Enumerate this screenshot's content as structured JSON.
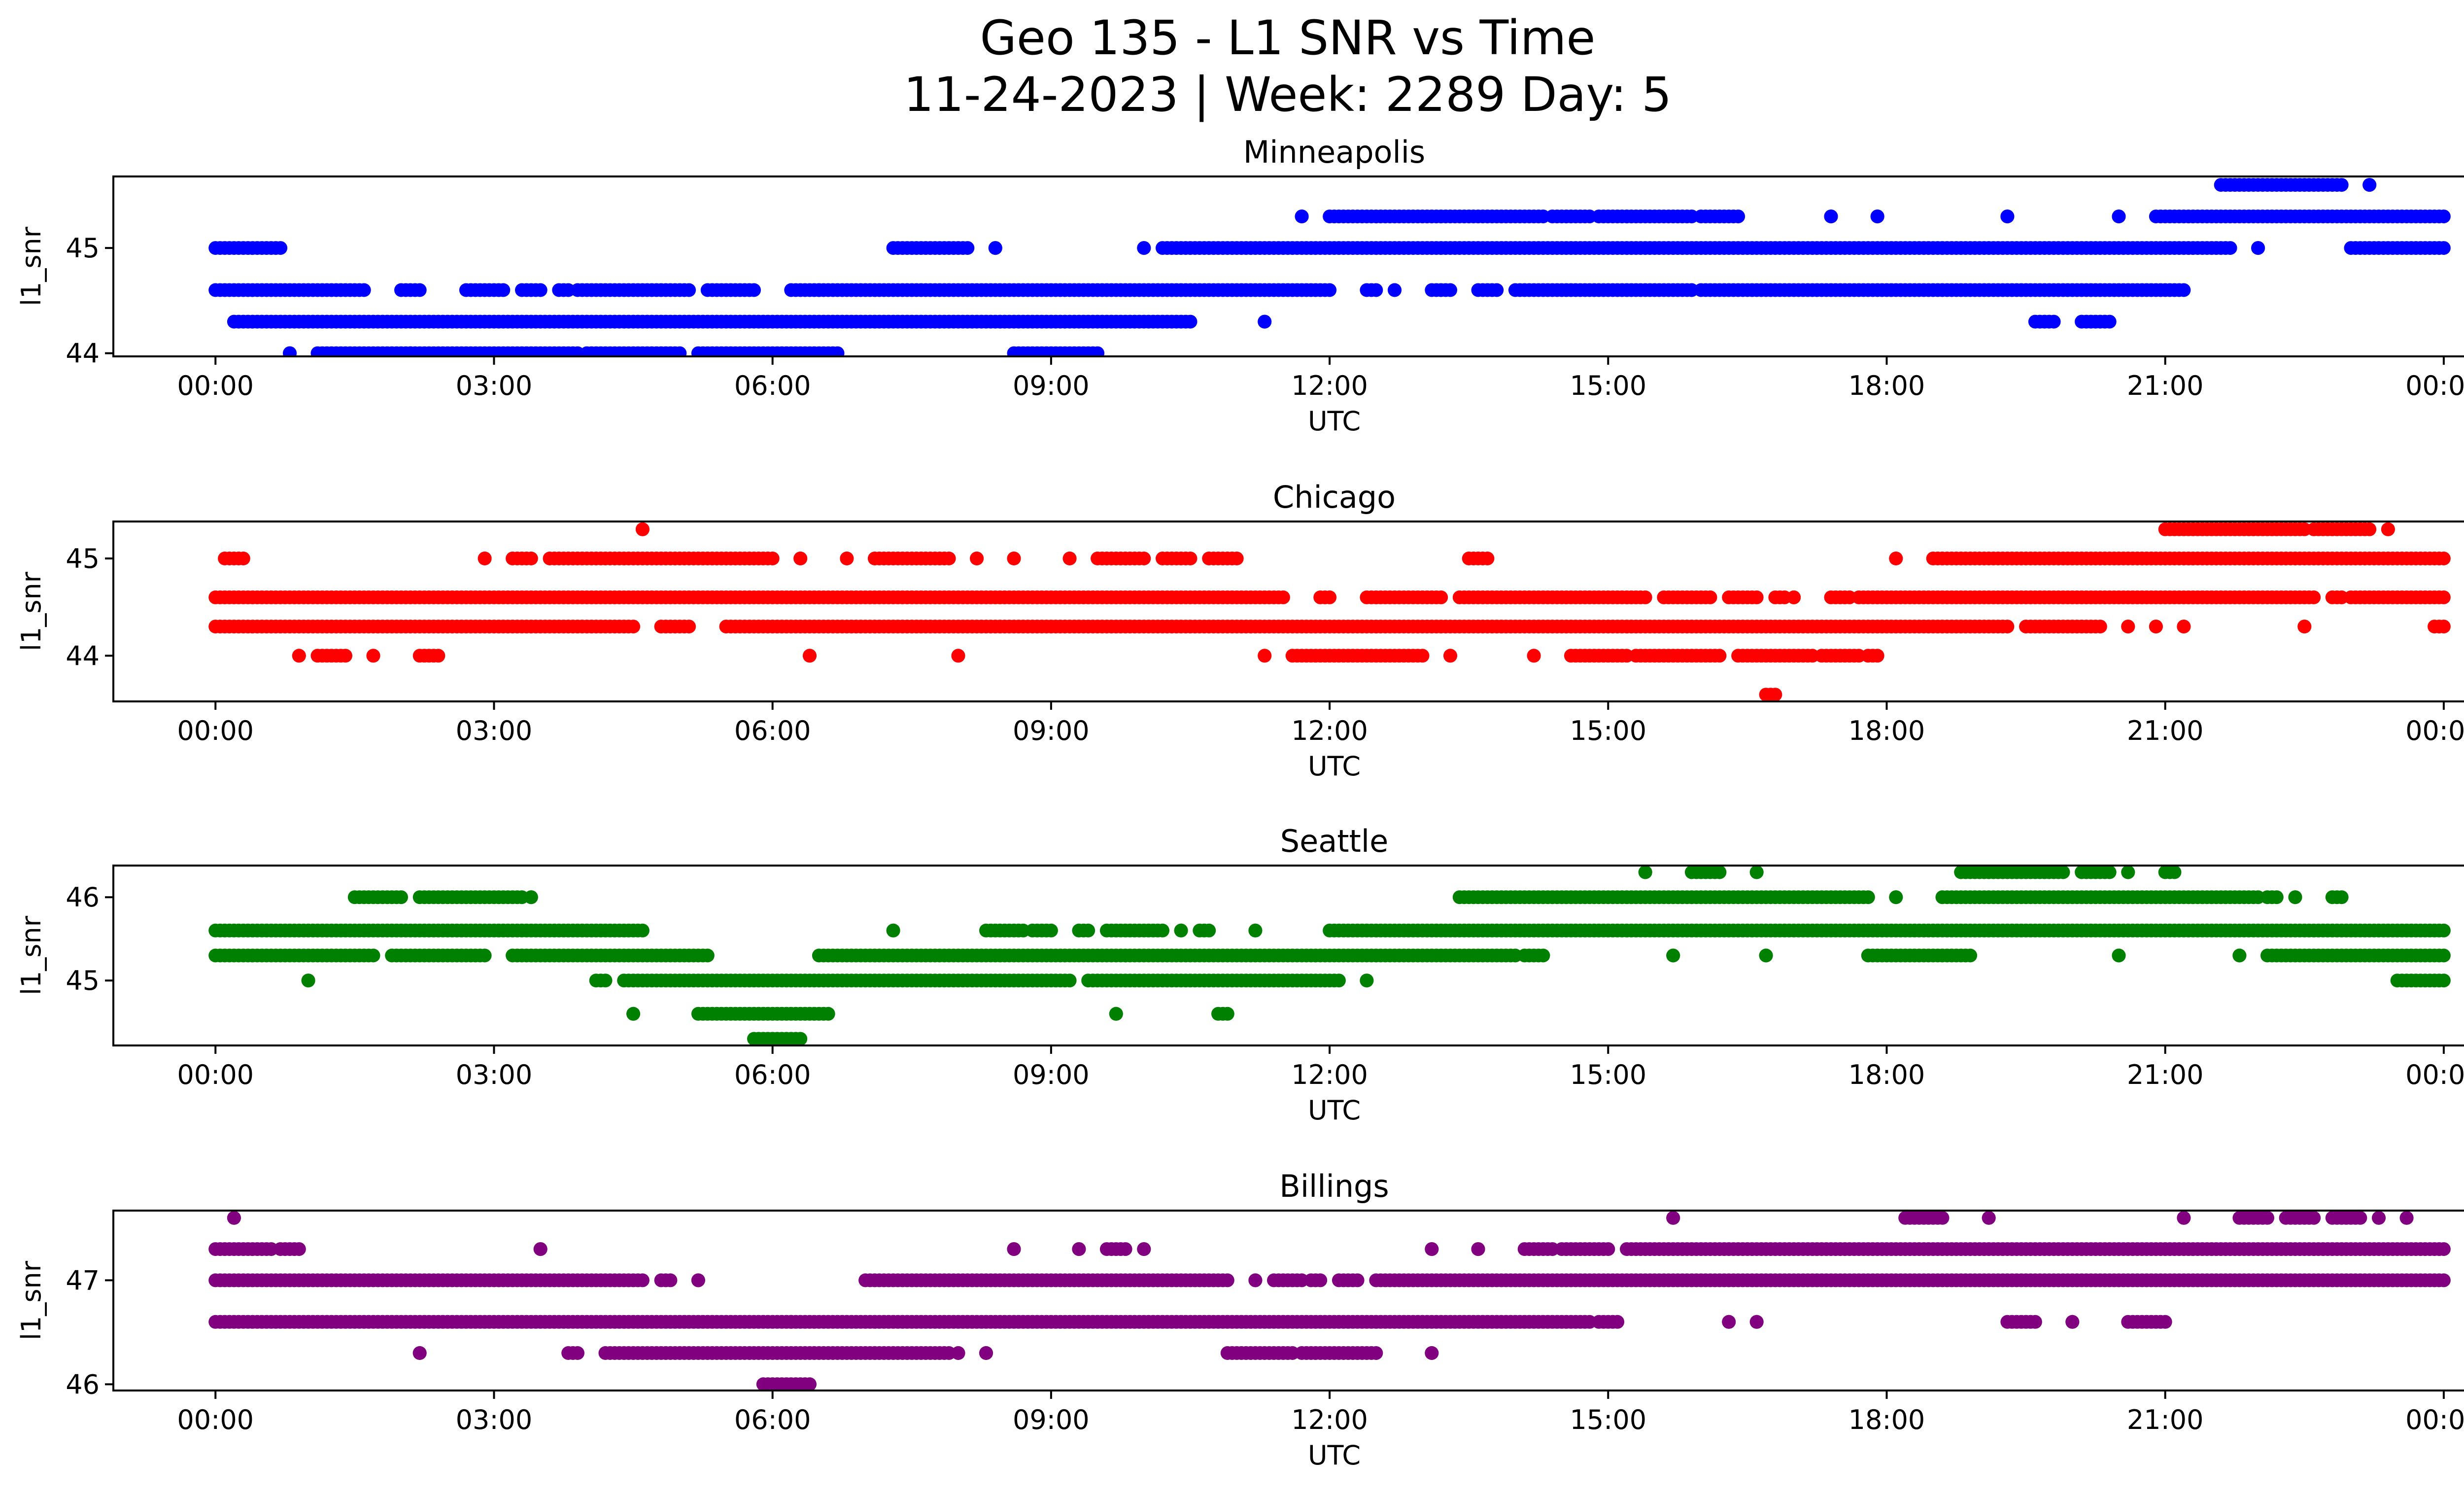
{
  "chart_data": {
    "type": "scatter",
    "title_line1": "Geo 135 - L1 SNR vs Time",
    "title_line2": "11-24-2023 | Week: 2289 Day: 5",
    "xlabel": "UTC",
    "ylabel": "l1_snr",
    "x_ticks": [
      "00:00",
      "03:00",
      "06:00",
      "09:00",
      "12:00",
      "15:00",
      "18:00",
      "21:00",
      "00:00"
    ],
    "xlim_hours": [
      -1.1,
      25.2
    ],
    "panels": [
      {
        "name": "Minneapolis",
        "color": "#0000ff",
        "ylim": [
          43.97,
          45.68
        ],
        "yticks": [
          44,
          45
        ],
        "levels": [
          {
            "y": 44.0,
            "segments": [
              [
                0.8,
                0.8
              ],
              [
                1.1,
                2.1
              ],
              [
                2.1,
                3.9
              ],
              [
                4.0,
                5.0
              ],
              [
                5.2,
                6.7
              ],
              [
                8.6,
                9.5
              ]
            ]
          },
          {
            "y": 44.3,
            "segments": [
              [
                0.2,
                10.5
              ],
              [
                11.3,
                11.3
              ],
              [
                19.6,
                19.8
              ],
              [
                20.1,
                20.4
              ]
            ]
          },
          {
            "y": 44.6,
            "segments": [
              [
                0.0,
                1.6
              ],
              [
                2.0,
                2.2
              ],
              [
                2.7,
                3.1
              ],
              [
                3.3,
                3.5
              ],
              [
                3.7,
                3.8
              ],
              [
                3.9,
                5.1
              ],
              [
                5.3,
                5.8
              ],
              [
                6.2,
                6.5
              ],
              [
                6.5,
                12.0
              ],
              [
                12.4,
                12.5
              ],
              [
                12.7,
                12.7
              ],
              [
                13.1,
                13.3
              ],
              [
                13.6,
                13.8
              ],
              [
                14.0,
                15.9
              ],
              [
                16.0,
                21.2
              ]
            ]
          },
          {
            "y": 45.0,
            "segments": [
              [
                0.0,
                0.7
              ],
              [
                7.3,
                8.1
              ],
              [
                8.4,
                8.4
              ],
              [
                10.0,
                10.0
              ],
              [
                10.2,
                21.7
              ],
              [
                22.0,
                22.0
              ],
              [
                23.0,
                24.0
              ]
            ]
          },
          {
            "y": 45.3,
            "segments": [
              [
                11.7,
                11.7
              ],
              [
                12.0,
                14.3
              ],
              [
                14.4,
                14.8
              ],
              [
                14.9,
                15.9
              ],
              [
                16.0,
                16.4
              ],
              [
                17.4,
                17.4
              ],
              [
                17.9,
                17.9
              ],
              [
                19.3,
                19.3
              ],
              [
                20.5,
                20.5
              ],
              [
                20.9,
                24.0
              ]
            ]
          },
          {
            "y": 45.6,
            "segments": [
              [
                21.6,
                22.9
              ],
              [
                23.2,
                23.2
              ]
            ]
          }
        ]
      },
      {
        "name": "Chicago",
        "color": "#ff0000",
        "ylim": [
          43.53,
          45.38
        ],
        "yticks": [
          44,
          45
        ],
        "levels": [
          {
            "y": 43.6,
            "segments": [
              [
                16.7,
                16.8
              ]
            ]
          },
          {
            "y": 44.0,
            "segments": [
              [
                0.9,
                0.9
              ],
              [
                1.1,
                1.4
              ],
              [
                1.7,
                1.7
              ],
              [
                2.2,
                2.4
              ],
              [
                6.4,
                6.4
              ],
              [
                8.0,
                8.0
              ],
              [
                11.3,
                11.3
              ],
              [
                11.6,
                13.0
              ],
              [
                13.3,
                13.3
              ],
              [
                14.2,
                14.2
              ],
              [
                14.6,
                15.2
              ],
              [
                15.3,
                16.2
              ],
              [
                16.4,
                17.2
              ],
              [
                17.3,
                17.7
              ],
              [
                17.8,
                17.9
              ]
            ]
          },
          {
            "y": 44.3,
            "segments": [
              [
                0.0,
                4.5
              ],
              [
                4.8,
                5.1
              ],
              [
                5.5,
                19.3
              ],
              [
                19.5,
                20.3
              ],
              [
                20.6,
                20.6
              ],
              [
                20.9,
                20.9
              ],
              [
                21.2,
                21.2
              ],
              [
                22.5,
                22.5
              ],
              [
                23.9,
                24.0
              ]
            ]
          },
          {
            "y": 44.6,
            "segments": [
              [
                0.0,
                11.5
              ],
              [
                11.9,
                12.0
              ],
              [
                12.4,
                13.2
              ],
              [
                13.4,
                15.4
              ],
              [
                15.6,
                16.1
              ],
              [
                16.3,
                16.6
              ],
              [
                16.8,
                16.9
              ],
              [
                17.0,
                17.0
              ],
              [
                17.4,
                17.6
              ],
              [
                17.7,
                22.6
              ],
              [
                22.8,
                22.9
              ],
              [
                23.0,
                24.0
              ]
            ]
          },
          {
            "y": 45.0,
            "segments": [
              [
                0.1,
                0.3
              ],
              [
                2.9,
                2.9
              ],
              [
                3.2,
                3.4
              ],
              [
                3.6,
                6.0
              ],
              [
                6.3,
                6.3
              ],
              [
                6.8,
                6.8
              ],
              [
                7.1,
                7.9
              ],
              [
                8.2,
                8.2
              ],
              [
                8.6,
                8.6
              ],
              [
                9.2,
                9.2
              ],
              [
                9.5,
                10.0
              ],
              [
                10.2,
                10.5
              ],
              [
                10.7,
                11.0
              ],
              [
                13.5,
                13.7
              ],
              [
                18.1,
                18.1
              ],
              [
                18.5,
                24.0
              ]
            ]
          },
          {
            "y": 45.3,
            "segments": [
              [
                4.6,
                4.6
              ],
              [
                21.0,
                22.5
              ],
              [
                22.6,
                23.2
              ],
              [
                23.4,
                23.4
              ]
            ]
          }
        ]
      },
      {
        "name": "Seattle",
        "color": "#008000",
        "ylim": [
          44.22,
          46.38
        ],
        "yticks": [
          45,
          46
        ],
        "levels": [
          {
            "y": 44.3,
            "segments": [
              [
                5.8,
                6.3
              ]
            ]
          },
          {
            "y": 44.6,
            "segments": [
              [
                4.5,
                4.5
              ],
              [
                5.2,
                6.6
              ],
              [
                9.7,
                9.7
              ],
              [
                10.8,
                10.9
              ]
            ]
          },
          {
            "y": 45.0,
            "segments": [
              [
                1.0,
                1.0
              ],
              [
                4.1,
                4.2
              ],
              [
                4.4,
                9.2
              ],
              [
                9.4,
                12.1
              ],
              [
                12.4,
                12.4
              ],
              [
                23.5,
                24.0
              ]
            ]
          },
          {
            "y": 45.3,
            "segments": [
              [
                0.0,
                1.7
              ],
              [
                1.9,
                2.9
              ],
              [
                3.2,
                5.3
              ],
              [
                6.5,
                14.0
              ],
              [
                14.1,
                14.3
              ],
              [
                15.7,
                15.7
              ],
              [
                16.7,
                16.7
              ],
              [
                17.8,
                18.9
              ],
              [
                20.5,
                20.5
              ],
              [
                21.8,
                21.8
              ],
              [
                22.1,
                24.0
              ]
            ]
          },
          {
            "y": 45.6,
            "segments": [
              [
                0.0,
                4.6
              ],
              [
                7.3,
                7.3
              ],
              [
                8.3,
                8.7
              ],
              [
                8.8,
                9.0
              ],
              [
                9.3,
                9.4
              ],
              [
                9.6,
                10.2
              ],
              [
                10.4,
                10.4
              ],
              [
                10.6,
                10.7
              ],
              [
                11.2,
                11.2
              ],
              [
                12.0,
                24.0
              ]
            ]
          },
          {
            "y": 46.0,
            "segments": [
              [
                1.5,
                2.0
              ],
              [
                2.2,
                3.3
              ],
              [
                3.4,
                3.4
              ],
              [
                13.4,
                17.8
              ],
              [
                18.1,
                18.1
              ],
              [
                18.6,
                22.0
              ],
              [
                22.1,
                22.2
              ],
              [
                22.4,
                22.4
              ],
              [
                22.8,
                22.9
              ]
            ]
          },
          {
            "y": 46.3,
            "segments": [
              [
                15.4,
                15.4
              ],
              [
                15.9,
                16.2
              ],
              [
                16.6,
                16.6
              ],
              [
                18.8,
                19.9
              ],
              [
                20.1,
                20.4
              ],
              [
                20.6,
                20.6
              ],
              [
                21.0,
                21.1
              ]
            ]
          }
        ]
      },
      {
        "name": "Billings",
        "color": "#800080",
        "ylim": [
          45.94,
          47.67
        ],
        "yticks": [
          46,
          47
        ],
        "levels": [
          {
            "y": 46.0,
            "segments": [
              [
                5.9,
                6.4
              ]
            ]
          },
          {
            "y": 46.3,
            "segments": [
              [
                2.2,
                2.2
              ],
              [
                3.8,
                3.9
              ],
              [
                4.2,
                7.9
              ],
              [
                8.0,
                8.0
              ],
              [
                8.3,
                8.3
              ],
              [
                10.9,
                11.6
              ],
              [
                11.7,
                12.5
              ],
              [
                13.1,
                13.1
              ]
            ]
          },
          {
            "y": 46.6,
            "segments": [
              [
                0.0,
                6.2
              ],
              [
                6.2,
                14.8
              ],
              [
                14.9,
                15.1
              ],
              [
                16.3,
                16.3
              ],
              [
                16.6,
                16.6
              ],
              [
                19.3,
                19.6
              ],
              [
                20.0,
                20.0
              ],
              [
                20.6,
                21.0
              ]
            ]
          },
          {
            "y": 47.0,
            "segments": [
              [
                0.0,
                4.6
              ],
              [
                4.8,
                4.9
              ],
              [
                5.2,
                5.2
              ],
              [
                7.0,
                10.9
              ],
              [
                11.2,
                11.2
              ],
              [
                11.4,
                11.7
              ],
              [
                11.8,
                11.9
              ],
              [
                12.1,
                12.3
              ],
              [
                12.5,
                24.0
              ]
            ]
          },
          {
            "y": 47.3,
            "segments": [
              [
                0.0,
                0.6
              ],
              [
                0.7,
                0.9
              ],
              [
                3.5,
                3.5
              ],
              [
                8.6,
                8.6
              ],
              [
                9.3,
                9.3
              ],
              [
                9.6,
                9.8
              ],
              [
                10.0,
                10.0
              ],
              [
                13.1,
                13.1
              ],
              [
                13.6,
                13.6
              ],
              [
                14.1,
                14.4
              ],
              [
                14.5,
                15.0
              ],
              [
                15.2,
                24.0
              ]
            ]
          },
          {
            "y": 47.6,
            "segments": [
              [
                0.2,
                0.2
              ],
              [
                15.7,
                15.7
              ],
              [
                18.2,
                18.6
              ],
              [
                19.1,
                19.1
              ],
              [
                21.2,
                21.2
              ],
              [
                21.8,
                22.1
              ],
              [
                22.3,
                22.6
              ],
              [
                22.8,
                23.1
              ],
              [
                23.3,
                23.3
              ],
              [
                23.6,
                23.6
              ]
            ]
          }
        ]
      }
    ]
  }
}
